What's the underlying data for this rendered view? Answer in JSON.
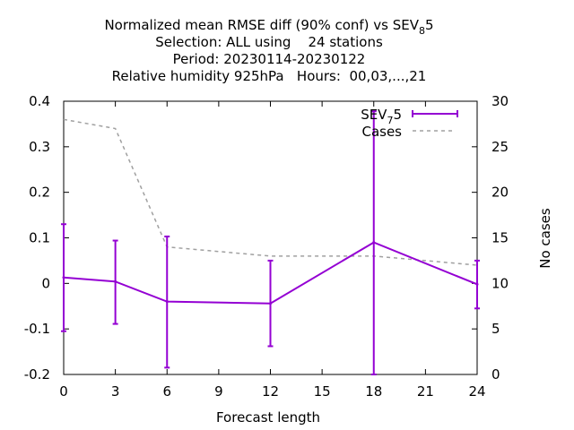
{
  "chart_data": {
    "type": "line",
    "title": {
      "line1_prefix": "Normalized mean RMSE diff (90% conf) vs SEV",
      "line1_sub": "8",
      "line1_suffix": "5",
      "line2": "Selection: ALL using    24 stations",
      "line3": "Period: 20230114-20230122",
      "line4": "Relative humidity 925hPa   Hours:  00,03,...,21"
    },
    "xlabel": "Forecast length",
    "ylabel_right": "No cases",
    "xlim": [
      0,
      24
    ],
    "ylim": [
      -0.2,
      0.4
    ],
    "y2lim": [
      0,
      30
    ],
    "x_ticks": [
      "0",
      "3",
      "6",
      "9",
      "12",
      "15",
      "18",
      "21",
      "24"
    ],
    "y_ticks": [
      "-0.2",
      "-0.1",
      "0",
      "0.1",
      "0.2",
      "0.3",
      "0.4"
    ],
    "y2_ticks": [
      "0",
      "5",
      "10",
      "15",
      "20",
      "25",
      "30"
    ],
    "grid": false,
    "legend_position": "top-right",
    "series": [
      {
        "name_prefix": "SEV",
        "name_sub": "7",
        "name_suffix": "5",
        "color": "#9400d3",
        "style": "solid-errorbars",
        "x": [
          0,
          3,
          6,
          12,
          18,
          24
        ],
        "y": [
          0.013,
          0.004,
          -0.04,
          -0.044,
          0.09,
          -0.002
        ],
        "err_low": [
          -0.105,
          -0.089,
          -0.185,
          -0.138,
          -0.2,
          -0.055
        ],
        "err_high": [
          0.13,
          0.094,
          0.103,
          0.05,
          0.378,
          0.05
        ]
      },
      {
        "name": "Cases",
        "color": "#a0a0a0",
        "style": "dashed",
        "axis": "y2",
        "x": [
          0,
          3,
          6,
          9,
          12,
          15,
          18,
          21,
          24
        ],
        "y": [
          28,
          27,
          14,
          13.5,
          13,
          13,
          13,
          12.5,
          12
        ]
      }
    ]
  }
}
